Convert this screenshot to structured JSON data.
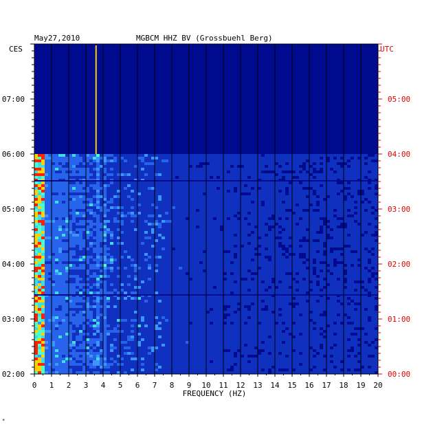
{
  "chart_data": {
    "type": "heatmap",
    "date": "May27,2010",
    "title": "MGBCM HHZ BV (Grossbuehl Berg)",
    "left_timezone": "CES",
    "right_timezone": "UTC",
    "xlabel": "FREQUENCY (HZ)",
    "xlim": [
      0,
      20
    ],
    "x_ticks": [
      "0",
      "1",
      "2",
      "3",
      "4",
      "5",
      "6",
      "7",
      "8",
      "9",
      "10",
      "11",
      "12",
      "13",
      "14",
      "15",
      "16",
      "17",
      "18",
      "19",
      "20"
    ],
    "left_time_ticks": [
      "02:00",
      "03:00",
      "04:00",
      "05:00",
      "06:00",
      "07:00"
    ],
    "right_time_ticks": [
      "00:00",
      "01:00",
      "02:00",
      "03:00",
      "04:00",
      "05:00"
    ],
    "time_range_utc_hours": [
      0,
      4
    ],
    "data_gap_after_utc_hours": 4.0,
    "dominant_peaks_hz": [
      0.2,
      0.4,
      3.6,
      4.05
    ],
    "colors": {
      "background": "#000b8f",
      "low": "#1030c0",
      "mid": "#40a0ff",
      "high": "#40ffd0",
      "peak": "#ffd000",
      "max": "#ff2000"
    },
    "footnote": "*"
  }
}
